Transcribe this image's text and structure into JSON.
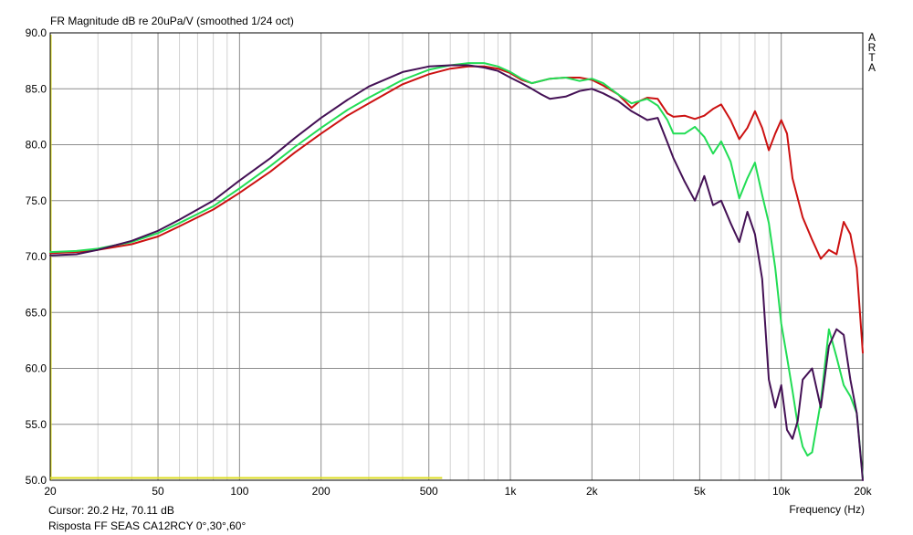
{
  "chart_data": {
    "type": "line",
    "title": "FR Magnitude dB re 20uPa/V (smoothed 1/24 oct)",
    "xlabel": "Frequency (Hz)",
    "ylabel": "",
    "xscale": "log",
    "xlim": [
      20,
      20000
    ],
    "ylim": [
      50,
      90
    ],
    "grid": true,
    "yticks": [
      50,
      55,
      60,
      65,
      70,
      75,
      80,
      85,
      90
    ],
    "ytick_labels": [
      "50.0",
      "55.0",
      "60.0",
      "65.0",
      "70.0",
      "75.0",
      "80.0",
      "85.0",
      "90.0"
    ],
    "xticks": [
      20,
      50,
      100,
      200,
      500,
      1000,
      2000,
      5000,
      10000,
      20000
    ],
    "xtick_labels": [
      "20",
      "50",
      "100",
      "200",
      "500",
      "1k",
      "2k",
      "5k",
      "10k",
      "20k"
    ],
    "series": [
      {
        "color": "#cc1111",
        "x": [
          20,
          25,
          30,
          40,
          50,
          60,
          80,
          100,
          130,
          160,
          200,
          250,
          300,
          400,
          500,
          600,
          700,
          800,
          900,
          1000,
          1100,
          1200,
          1400,
          1600,
          1800,
          2000,
          2200,
          2500,
          2800,
          3000,
          3200,
          3500,
          3800,
          4000,
          4400,
          4800,
          5200,
          5600,
          6000,
          6500,
          7000,
          7500,
          8000,
          8500,
          9000,
          9500,
          10000,
          10500,
          11000,
          12000,
          13000,
          14000,
          15000,
          16000,
          17000,
          18000,
          19000,
          20000
        ],
        "y": [
          70.3,
          70.4,
          70.6,
          71.1,
          71.8,
          72.7,
          74.2,
          75.7,
          77.6,
          79.3,
          81.0,
          82.6,
          83.7,
          85.4,
          86.3,
          86.8,
          87.0,
          87.0,
          86.8,
          86.4,
          85.8,
          85.5,
          85.9,
          86.0,
          86.0,
          85.8,
          85.3,
          84.5,
          83.3,
          83.9,
          84.2,
          84.1,
          82.8,
          82.5,
          82.6,
          82.3,
          82.6,
          83.2,
          83.6,
          82.2,
          80.5,
          81.5,
          83.0,
          81.5,
          79.5,
          81.0,
          82.2,
          81.0,
          77.0,
          73.5,
          71.5,
          69.8,
          70.6,
          70.2,
          73.1,
          72.0,
          69.0,
          61.4
        ]
      },
      {
        "color": "#22dd55",
        "x": [
          20,
          25,
          30,
          40,
          50,
          60,
          80,
          100,
          130,
          160,
          200,
          250,
          300,
          400,
          500,
          600,
          700,
          800,
          900,
          1000,
          1100,
          1200,
          1400,
          1600,
          1800,
          2000,
          2200,
          2500,
          2800,
          3000,
          3200,
          3500,
          3800,
          4000,
          4400,
          4800,
          5200,
          5600,
          6000,
          6500,
          7000,
          7500,
          8000,
          8500,
          9000,
          9500,
          10000,
          10500,
          11000,
          11500,
          12000,
          12500,
          13000,
          14000,
          15000,
          16000,
          17000,
          18000,
          19000,
          20000
        ],
        "y": [
          70.4,
          70.5,
          70.7,
          71.3,
          72.1,
          73.0,
          74.5,
          76.1,
          78.1,
          79.8,
          81.5,
          83.1,
          84.2,
          85.8,
          86.7,
          87.1,
          87.3,
          87.3,
          87.0,
          86.5,
          85.9,
          85.5,
          85.9,
          86.0,
          85.7,
          85.9,
          85.5,
          84.5,
          83.7,
          83.9,
          84.1,
          83.5,
          82.2,
          81.0,
          81.0,
          81.6,
          80.7,
          79.2,
          80.3,
          78.5,
          75.2,
          77.0,
          78.4,
          75.5,
          73.0,
          69.0,
          64.0,
          61.0,
          58.0,
          55.0,
          53.0,
          52.2,
          52.5,
          57.0,
          63.5,
          61.0,
          58.5,
          57.5,
          56.0,
          50.2
        ]
      },
      {
        "color": "#441155",
        "x": [
          20,
          25,
          30,
          40,
          50,
          60,
          80,
          100,
          130,
          160,
          200,
          250,
          300,
          400,
          500,
          600,
          700,
          800,
          900,
          1000,
          1100,
          1200,
          1300,
          1400,
          1600,
          1800,
          2000,
          2200,
          2500,
          2800,
          3000,
          3200,
          3500,
          3800,
          4000,
          4400,
          4800,
          5200,
          5600,
          6000,
          6500,
          7000,
          7500,
          8000,
          8500,
          9000,
          9500,
          10000,
          10500,
          11000,
          11500,
          12000,
          13000,
          14000,
          15000,
          16000,
          17000,
          18000,
          19000,
          20000
        ],
        "y": [
          70.1,
          70.2,
          70.6,
          71.4,
          72.3,
          73.3,
          75.0,
          76.8,
          78.8,
          80.6,
          82.4,
          84.0,
          85.2,
          86.5,
          87.0,
          87.1,
          87.1,
          86.9,
          86.6,
          86.0,
          85.5,
          85.0,
          84.5,
          84.1,
          84.3,
          84.8,
          85.0,
          84.6,
          83.9,
          83.0,
          82.6,
          82.2,
          82.4,
          80.2,
          78.8,
          76.7,
          75.0,
          77.2,
          74.6,
          75.0,
          73.0,
          71.3,
          74.0,
          72.0,
          68.0,
          59.0,
          56.5,
          58.5,
          54.5,
          53.7,
          55.3,
          59.0,
          60.0,
          56.5,
          62.0,
          63.5,
          63.0,
          59.0,
          56.0,
          50.0
        ]
      }
    ],
    "reference_line": {
      "color": "#dddd22",
      "x": [
        20,
        560
      ],
      "y": [
        50.2,
        50.2
      ]
    }
  },
  "branding": {
    "lines": [
      "A",
      "R",
      "T",
      "A"
    ]
  },
  "status": {
    "cursor": "Cursor: 20.2 Hz, 70.11 dB",
    "caption": "Risposta FF SEAS CA12RCY 0°,30°,60°"
  }
}
